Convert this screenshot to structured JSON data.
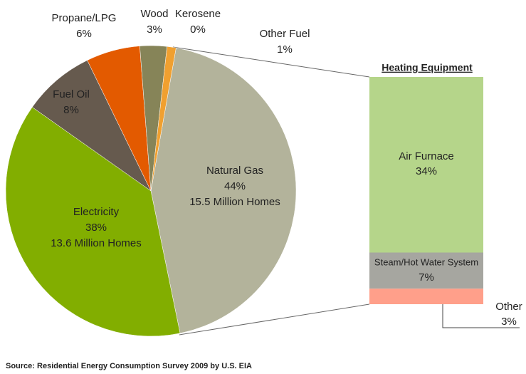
{
  "chart_data": [
    {
      "type": "pie",
      "categories": [
        "Natural Gas",
        "Electricity",
        "Fuel Oil",
        "Propane/LPG",
        "Wood",
        "Kerosene",
        "Other Fuel"
      ],
      "values": [
        44,
        38,
        8,
        6,
        3,
        0,
        1
      ],
      "value_labels": [
        "44%",
        "38%",
        "8%",
        "6%",
        "3%",
        "0%",
        "1%"
      ],
      "homes_labels": [
        "15.5 Million Homes",
        "13.6 Million Homes",
        null,
        null,
        null,
        null,
        null
      ],
      "colors": [
        "#b3b39b",
        "#82ae00",
        "#665a4e",
        "#e35a00",
        "#868458",
        "#8a5b3a",
        "#f0a030"
      ]
    },
    {
      "type": "stacked_bar",
      "title": "Heating Equipment",
      "categories": [
        "Air Furnace",
        "Steam/Hot Water System",
        "Other"
      ],
      "values": [
        34,
        7,
        3
      ],
      "value_labels": [
        "34%",
        "7%",
        "3%"
      ],
      "colors": [
        "#b5d58a",
        "#a6a6a0",
        "#ff9f8a"
      ]
    }
  ],
  "source": "Source: Residential Energy Consumption Survey 2009 by U.S. EIA"
}
